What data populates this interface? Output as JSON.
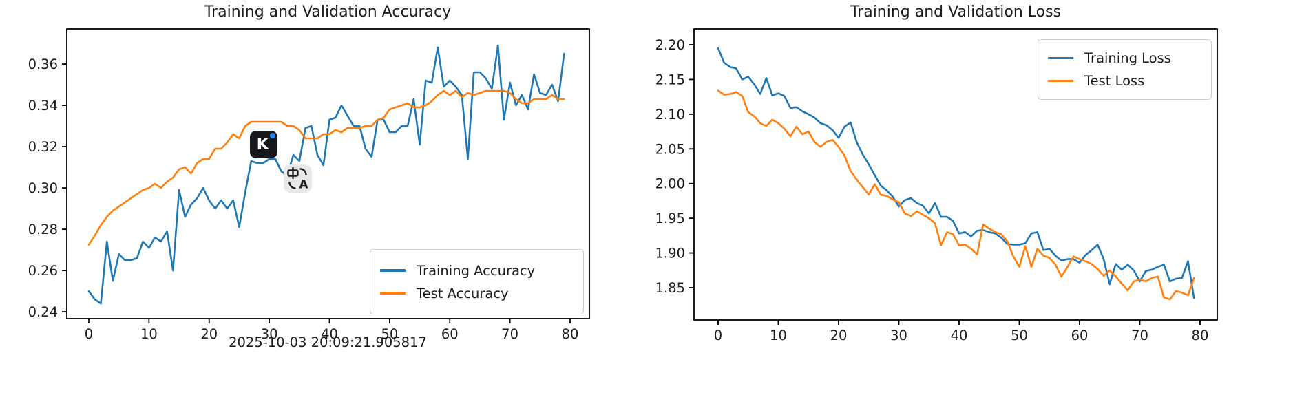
{
  "figure": {
    "background": "#ffffff",
    "axis_color": "#000000",
    "text_color": "#1c1c1c"
  },
  "overlay_icons": {
    "kagi": {
      "letter": "K",
      "background": "#17181b",
      "dot_color": "#2e7ff2"
    },
    "translate": {
      "glyph": "zhong-A-translate",
      "background": "#e9e9eb",
      "glyph_color": "#1d1d1f"
    }
  },
  "chart_data": [
    {
      "type": "line",
      "title": "Training and Validation Accuracy",
      "xlabel": "2025-10-03 20:09:21.905817",
      "ylabel": "",
      "xlim": [
        -3.66,
        83.2
      ],
      "ylim": [
        0.2367,
        0.377
      ],
      "grid": false,
      "x_ticks": {
        "values": [
          0,
          10,
          20,
          30,
          40,
          50,
          60,
          70,
          80
        ],
        "labels": [
          "0",
          "10",
          "20",
          "30",
          "40",
          "50",
          "60",
          "70",
          "80"
        ]
      },
      "y_ticks": {
        "values": [
          0.24,
          0.26,
          0.28,
          0.3,
          0.32,
          0.34,
          0.36
        ],
        "labels": [
          "0.24",
          "0.26",
          "0.28",
          "0.30",
          "0.32",
          "0.34",
          "0.36"
        ]
      },
      "legend": {
        "position": "lower right",
        "entries": [
          {
            "label": "Training Accuracy",
            "color": "#1f77b4"
          },
          {
            "label": "Test Accuracy",
            "color": "#ff7f0e"
          }
        ]
      },
      "x_start": 0,
      "series": [
        {
          "name": "Training Accuracy",
          "color": "#1f77b4",
          "values": [
            0.25,
            0.246,
            0.244,
            0.274,
            0.255,
            0.268,
            0.265,
            0.265,
            0.266,
            0.274,
            0.271,
            0.276,
            0.274,
            0.279,
            0.26,
            0.299,
            0.286,
            0.292,
            0.295,
            0.3,
            0.294,
            0.29,
            0.294,
            0.29,
            0.294,
            0.281,
            0.298,
            0.313,
            0.312,
            0.312,
            0.314,
            0.314,
            0.308,
            0.306,
            0.316,
            0.313,
            0.329,
            0.33,
            0.316,
            0.311,
            0.333,
            0.334,
            0.34,
            0.335,
            0.33,
            0.33,
            0.319,
            0.315,
            0.333,
            0.333,
            0.327,
            0.327,
            0.33,
            0.33,
            0.343,
            0.321,
            0.352,
            0.351,
            0.368,
            0.349,
            0.352,
            0.349,
            0.345,
            0.314,
            0.356,
            0.356,
            0.353,
            0.348,
            0.369,
            0.333,
            0.351,
            0.34,
            0.345,
            0.338,
            0.355,
            0.346,
            0.345,
            0.35,
            0.342,
            0.365
          ]
        },
        {
          "name": "Test Accuracy",
          "color": "#ff7f0e",
          "values": [
            0.2725,
            0.277,
            0.282,
            0.286,
            0.289,
            0.291,
            0.293,
            0.295,
            0.297,
            0.299,
            0.3,
            0.302,
            0.3,
            0.303,
            0.305,
            0.309,
            0.31,
            0.307,
            0.312,
            0.314,
            0.314,
            0.319,
            0.319,
            0.322,
            0.326,
            0.324,
            0.33,
            0.332,
            0.332,
            0.332,
            0.332,
            0.332,
            0.332,
            0.33,
            0.33,
            0.328,
            0.324,
            0.324,
            0.324,
            0.326,
            0.326,
            0.328,
            0.327,
            0.329,
            0.329,
            0.329,
            0.33,
            0.33,
            0.333,
            0.334,
            0.338,
            0.339,
            0.34,
            0.341,
            0.339,
            0.339,
            0.34,
            0.342,
            0.345,
            0.347,
            0.345,
            0.347,
            0.344,
            0.346,
            0.345,
            0.346,
            0.347,
            0.347,
            0.347,
            0.347,
            0.346,
            0.343,
            0.341,
            0.341,
            0.343,
            0.343,
            0.343,
            0.345,
            0.343,
            0.343
          ]
        }
      ]
    },
    {
      "type": "line",
      "title": "Training and Validation Loss",
      "xlabel": "",
      "ylabel": "",
      "xlim": [
        -4.0,
        82.86
      ],
      "ylim": [
        1.8034,
        2.2228
      ],
      "grid": false,
      "x_ticks": {
        "values": [
          0,
          10,
          20,
          30,
          40,
          50,
          60,
          70,
          80
        ],
        "labels": [
          "0",
          "10",
          "20",
          "30",
          "40",
          "50",
          "60",
          "70",
          "80"
        ]
      },
      "y_ticks": {
        "values": [
          1.85,
          1.9,
          1.95,
          2.0,
          2.05,
          2.1,
          2.15,
          2.2
        ],
        "labels": [
          "1.85",
          "1.90",
          "1.95",
          "2.00",
          "2.05",
          "2.10",
          "2.15",
          "2.20"
        ]
      },
      "legend": {
        "position": "upper right",
        "entries": [
          {
            "label": "Training Loss",
            "color": "#1f77b4"
          },
          {
            "label": "Test Loss",
            "color": "#ff7f0e"
          }
        ]
      },
      "x_start": 0,
      "series": [
        {
          "name": "Training Loss",
          "color": "#1f77b4",
          "values": [
            2.195,
            2.174,
            2.168,
            2.166,
            2.15,
            2.154,
            2.143,
            2.129,
            2.152,
            2.127,
            2.13,
            2.126,
            2.109,
            2.11,
            2.104,
            2.1,
            2.095,
            2.087,
            2.084,
            2.077,
            2.066,
            2.082,
            2.088,
            2.06,
            2.042,
            2.028,
            2.012,
            1.997,
            1.99,
            1.981,
            1.967,
            1.976,
            1.979,
            1.972,
            1.968,
            1.957,
            1.972,
            1.952,
            1.952,
            1.946,
            1.928,
            1.93,
            1.924,
            1.932,
            1.933,
            1.93,
            1.928,
            1.922,
            1.913,
            1.912,
            1.912,
            1.914,
            1.928,
            1.93,
            1.904,
            1.906,
            1.896,
            1.889,
            1.891,
            1.891,
            1.886,
            1.897,
            1.904,
            1.912,
            1.891,
            1.855,
            1.884,
            1.876,
            1.883,
            1.875,
            1.859,
            1.874,
            1.876,
            1.88,
            1.883,
            1.859,
            1.863,
            1.864,
            1.888,
            1.835
          ]
        },
        {
          "name": "Test Loss",
          "color": "#ff7f0e",
          "values": [
            2.134,
            2.128,
            2.129,
            2.132,
            2.126,
            2.103,
            2.097,
            2.087,
            2.083,
            2.092,
            2.087,
            2.079,
            2.068,
            2.082,
            2.071,
            2.075,
            2.06,
            2.053,
            2.06,
            2.063,
            2.053,
            2.04,
            2.018,
            2.006,
            1.995,
            1.984,
            1.999,
            1.984,
            1.982,
            1.977,
            1.973,
            1.957,
            1.953,
            1.96,
            1.955,
            1.95,
            1.943,
            1.911,
            1.93,
            1.927,
            1.911,
            1.912,
            1.906,
            1.898,
            1.941,
            1.935,
            1.93,
            1.927,
            1.917,
            1.895,
            1.88,
            1.91,
            1.88,
            1.906,
            1.896,
            1.893,
            1.883,
            1.866,
            1.88,
            1.895,
            1.891,
            1.888,
            1.884,
            1.877,
            1.867,
            1.875,
            1.866,
            1.856,
            1.846,
            1.859,
            1.862,
            1.859,
            1.864,
            1.866,
            1.836,
            1.833,
            1.845,
            1.843,
            1.839,
            1.864
          ]
        }
      ]
    }
  ]
}
